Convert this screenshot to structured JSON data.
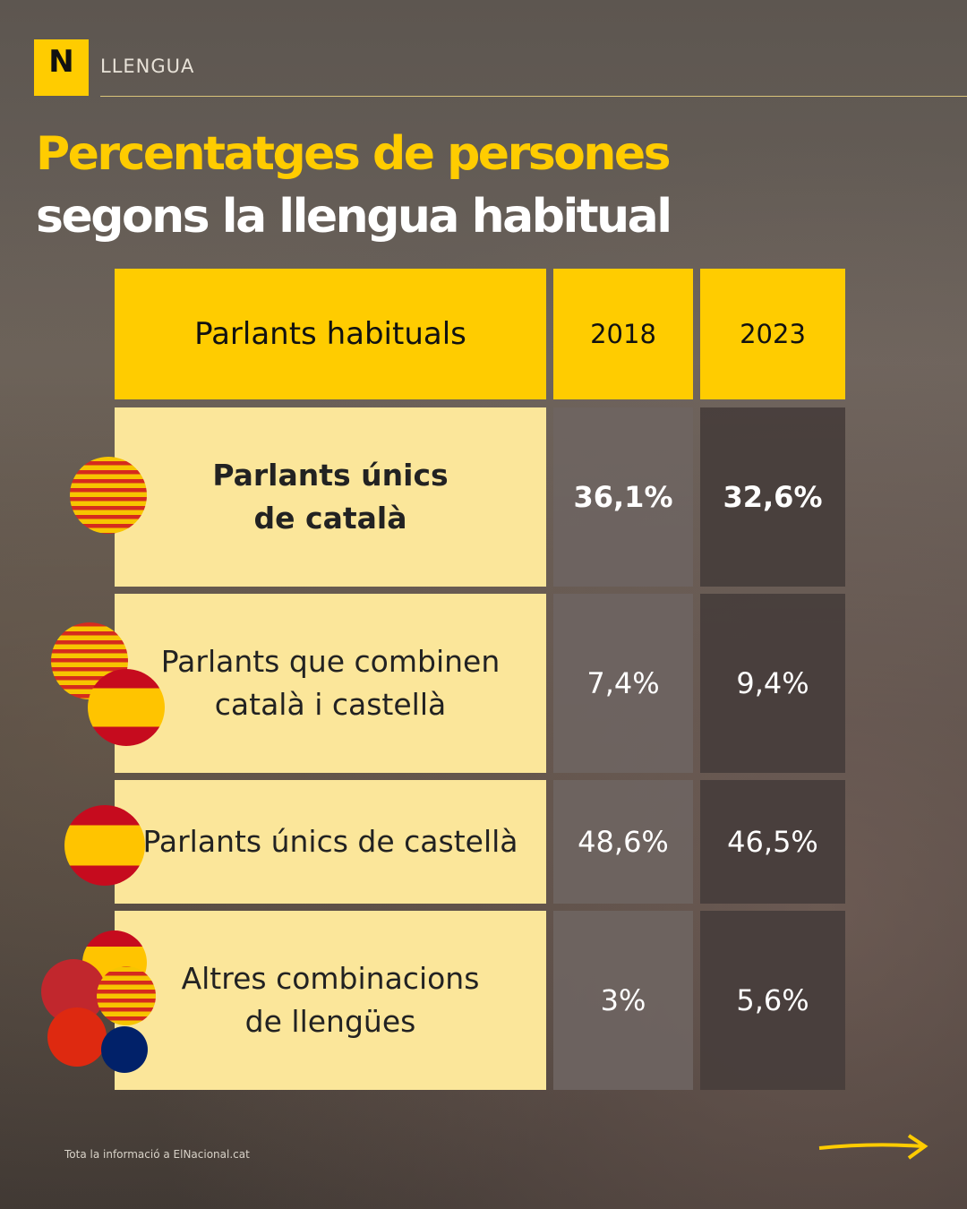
{
  "header": {
    "logo": "N",
    "section": "LLENGUA"
  },
  "title": {
    "line1": "Percentatges de persones",
    "line2": "segons la llengua habitual"
  },
  "table": {
    "header": [
      "Parlants habituals",
      "2018",
      "2023"
    ],
    "rows": [
      {
        "label": [
          "Parlants únics",
          "de català"
        ],
        "values": [
          "36,1%",
          "32,6%"
        ]
      },
      {
        "label": [
          "Parlants que combinen",
          "català i castellà"
        ],
        "values": [
          "7,4%",
          "9,4%"
        ]
      },
      {
        "label": [
          "Parlants únics de castellà"
        ],
        "values": [
          "48,6%",
          "46,5%"
        ]
      },
      {
        "label": [
          "Altres combinacions",
          "de llengües"
        ],
        "values": [
          "3%",
          "5,6%"
        ]
      }
    ]
  },
  "footer": {
    "note": "Tota la informació a ElNacional.cat"
  }
}
